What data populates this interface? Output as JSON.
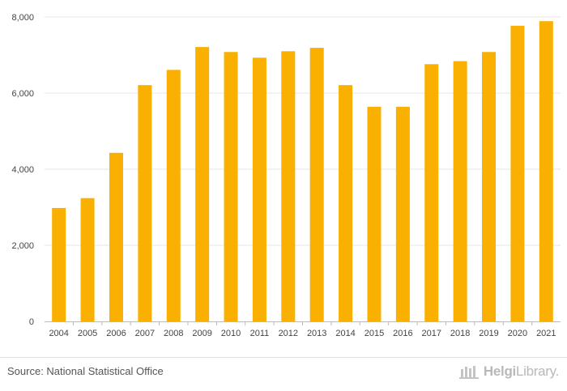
{
  "chart_data": {
    "type": "bar",
    "categories": [
      "2004",
      "2005",
      "2006",
      "2007",
      "2008",
      "2009",
      "2010",
      "2011",
      "2012",
      "2013",
      "2014",
      "2015",
      "2016",
      "2017",
      "2018",
      "2019",
      "2020",
      "2021"
    ],
    "values": [
      2980,
      3240,
      4430,
      6210,
      6610,
      7210,
      7080,
      6930,
      7100,
      7190,
      6210,
      5640,
      5640,
      6760,
      6840,
      7080,
      7770,
      7890
    ],
    "ylim": [
      0,
      8000
    ],
    "yticks": [
      0,
      2000,
      4000,
      6000,
      8000
    ],
    "ytick_labels": [
      "0",
      "2,000",
      "4,000",
      "6,000",
      "8,000"
    ],
    "grid": true,
    "bar_color": "#f9b000"
  },
  "footer": {
    "source": "Source: National Statistical Office",
    "logo_brand": "Helgi",
    "logo_suffix": "Library."
  }
}
